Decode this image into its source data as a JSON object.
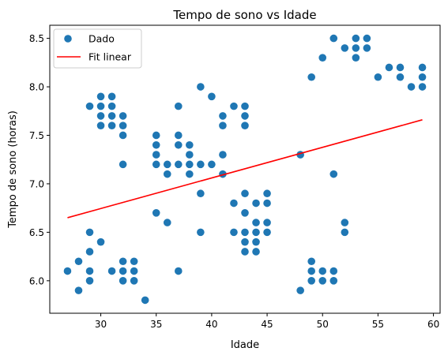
{
  "chart_data": {
    "type": "scatter",
    "title": "Tempo de sono vs Idade",
    "xlabel": "Idade",
    "ylabel": "Tempo de sono (horas)",
    "xlim": [
      25.4,
      60.6
    ],
    "ylim": [
      5.665,
      8.635
    ],
    "xticks": [
      30,
      35,
      40,
      45,
      50,
      55,
      60
    ],
    "yticks": [
      6.0,
      6.5,
      7.0,
      7.5,
      8.0,
      8.5
    ],
    "grid": false,
    "legend_position": "top-left",
    "series": [
      {
        "name": "Dado",
        "kind": "scatter",
        "color": "#1f77b4",
        "points": [
          [
            27,
            6.1
          ],
          [
            28,
            6.2
          ],
          [
            28,
            5.9
          ],
          [
            29,
            6.5
          ],
          [
            29,
            6.3
          ],
          [
            29,
            6.1
          ],
          [
            29,
            6.0
          ],
          [
            30,
            6.4
          ],
          [
            31,
            6.1
          ],
          [
            32,
            6.2
          ],
          [
            32,
            6.1
          ],
          [
            32,
            6.0
          ],
          [
            33,
            6.2
          ],
          [
            33,
            6.1
          ],
          [
            33,
            6.0
          ],
          [
            34,
            5.8
          ],
          [
            29,
            7.8
          ],
          [
            30,
            7.9
          ],
          [
            30,
            7.8
          ],
          [
            30,
            7.7
          ],
          [
            30,
            7.6
          ],
          [
            31,
            7.9
          ],
          [
            31,
            7.8
          ],
          [
            31,
            7.7
          ],
          [
            31,
            7.6
          ],
          [
            32,
            7.7
          ],
          [
            32,
            7.6
          ],
          [
            32,
            7.5
          ],
          [
            32,
            7.2
          ],
          [
            35,
            7.5
          ],
          [
            35,
            7.4
          ],
          [
            35,
            7.3
          ],
          [
            35,
            7.2
          ],
          [
            36,
            7.2
          ],
          [
            36,
            7.1
          ],
          [
            37,
            7.8
          ],
          [
            37,
            7.5
          ],
          [
            37,
            7.4
          ],
          [
            37,
            7.2
          ],
          [
            38,
            7.4
          ],
          [
            38,
            7.3
          ],
          [
            38,
            7.2
          ],
          [
            38,
            7.1
          ],
          [
            39,
            8.0
          ],
          [
            39,
            7.2
          ],
          [
            39,
            6.9
          ],
          [
            39,
            6.5
          ],
          [
            40,
            7.9
          ],
          [
            40,
            7.2
          ],
          [
            41,
            7.7
          ],
          [
            41,
            7.6
          ],
          [
            41,
            7.3
          ],
          [
            41,
            7.1
          ],
          [
            42,
            7.8
          ],
          [
            43,
            7.8
          ],
          [
            43,
            7.7
          ],
          [
            43,
            7.6
          ],
          [
            35,
            6.7
          ],
          [
            36,
            6.6
          ],
          [
            37,
            6.1
          ],
          [
            42,
            6.8
          ],
          [
            42,
            6.5
          ],
          [
            43,
            6.9
          ],
          [
            43,
            6.7
          ],
          [
            43,
            6.5
          ],
          [
            43,
            6.4
          ],
          [
            43,
            6.3
          ],
          [
            44,
            6.8
          ],
          [
            44,
            6.6
          ],
          [
            44,
            6.5
          ],
          [
            44,
            6.4
          ],
          [
            44,
            6.3
          ],
          [
            45,
            6.9
          ],
          [
            45,
            6.8
          ],
          [
            45,
            6.6
          ],
          [
            45,
            6.5
          ],
          [
            48,
            7.3
          ],
          [
            48,
            5.9
          ],
          [
            49,
            8.1
          ],
          [
            49,
            6.2
          ],
          [
            49,
            6.1
          ],
          [
            49,
            6.0
          ],
          [
            50,
            8.3
          ],
          [
            50,
            6.1
          ],
          [
            50,
            6.0
          ],
          [
            51,
            8.5
          ],
          [
            51,
            7.1
          ],
          [
            51,
            6.1
          ],
          [
            51,
            6.0
          ],
          [
            52,
            8.4
          ],
          [
            52,
            6.6
          ],
          [
            52,
            6.5
          ],
          [
            53,
            8.5
          ],
          [
            53,
            8.4
          ],
          [
            53,
            8.3
          ],
          [
            54,
            8.5
          ],
          [
            54,
            8.4
          ],
          [
            55,
            8.1
          ],
          [
            56,
            8.2
          ],
          [
            57,
            8.2
          ],
          [
            57,
            8.1
          ],
          [
            58,
            8.0
          ],
          [
            59,
            8.2
          ],
          [
            59,
            8.1
          ],
          [
            59,
            8.0
          ]
        ]
      },
      {
        "name": "Fit linear",
        "kind": "line",
        "color": "#ff0000",
        "points": [
          [
            27,
            6.65
          ],
          [
            59,
            7.66
          ]
        ]
      }
    ]
  }
}
